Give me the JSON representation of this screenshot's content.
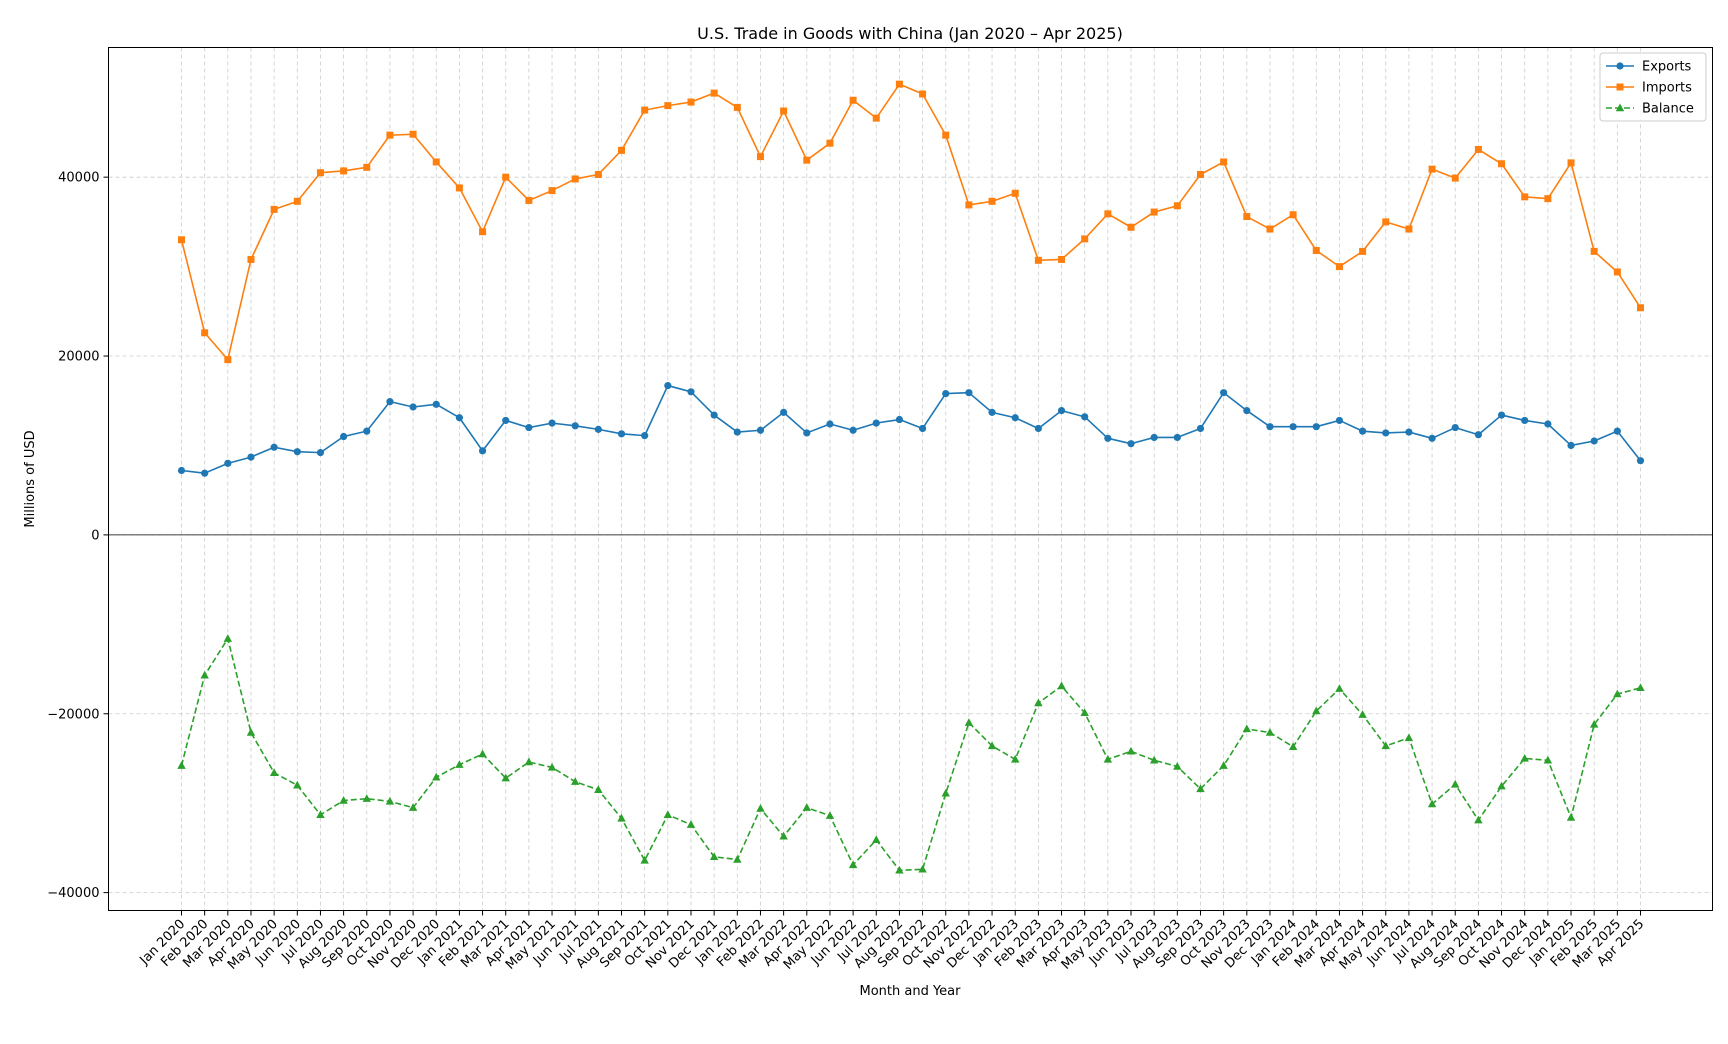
{
  "chart_data": {
    "type": "line",
    "title": "U.S. Trade in Goods with China (Jan 2020 – Apr 2025)",
    "xlabel": "Month and Year",
    "ylabel": "Millions of USD",
    "ylim": [
      -42000,
      54500
    ],
    "yticks": [
      -40000,
      -20000,
      0,
      20000,
      40000
    ],
    "ytick_labels": [
      "−40000",
      "−20000",
      "0",
      "20000",
      "40000"
    ],
    "grid": true,
    "zero_line": true,
    "legend_position": "top-right",
    "categories": [
      "Jan 2020",
      "Feb 2020",
      "Mar 2020",
      "Apr 2020",
      "May 2020",
      "Jun 2020",
      "Jul 2020",
      "Aug 2020",
      "Sep 2020",
      "Oct 2020",
      "Nov 2020",
      "Dec 2020",
      "Jan 2021",
      "Feb 2021",
      "Mar 2021",
      "Apr 2021",
      "May 2021",
      "Jun 2021",
      "Jul 2021",
      "Aug 2021",
      "Sep 2021",
      "Oct 2021",
      "Nov 2021",
      "Dec 2021",
      "Jan 2022",
      "Feb 2022",
      "Mar 2022",
      "Apr 2022",
      "May 2022",
      "Jun 2022",
      "Jul 2022",
      "Aug 2022",
      "Sep 2022",
      "Oct 2022",
      "Nov 2022",
      "Dec 2022",
      "Jan 2023",
      "Feb 2023",
      "Mar 2023",
      "Apr 2023",
      "May 2023",
      "Jun 2023",
      "Jul 2023",
      "Aug 2023",
      "Sep 2023",
      "Oct 2023",
      "Nov 2023",
      "Dec 2023",
      "Jan 2024",
      "Feb 2024",
      "Mar 2024",
      "Apr 2024",
      "May 2024",
      "Jun 2024",
      "Jul 2024",
      "Aug 2024",
      "Sep 2024",
      "Oct 2024",
      "Nov 2024",
      "Dec 2024",
      "Jan 2025",
      "Feb 2025",
      "Mar 2025",
      "Apr 2025"
    ],
    "series": [
      {
        "name": "Exports",
        "color": "#1f77b4",
        "marker": "circle",
        "dash": "solid",
        "values": [
          7200,
          6900,
          8000,
          8700,
          9800,
          9300,
          9200,
          11000,
          11600,
          14900,
          14300,
          14600,
          13100,
          9400,
          12800,
          12000,
          12500,
          12200,
          11800,
          11300,
          11100,
          16700,
          16000,
          13400,
          11500,
          11700,
          13700,
          11400,
          12400,
          11700,
          12500,
          12900,
          11900,
          15800,
          15900,
          13700,
          13100,
          11900,
          13900,
          13200,
          10800,
          10200,
          10900,
          10900,
          11900,
          15900,
          13900,
          12100,
          12100,
          12100,
          12800,
          11600,
          11400,
          11500,
          10800,
          12000,
          11200,
          13400,
          12800,
          12400,
          10000,
          10500,
          11600,
          8300
        ]
      },
      {
        "name": "Imports",
        "color": "#ff7f0e",
        "marker": "square",
        "dash": "solid",
        "values": [
          33000,
          22600,
          19600,
          30800,
          36400,
          37300,
          40500,
          40700,
          41100,
          44700,
          44800,
          41700,
          38800,
          33900,
          40000,
          37400,
          38500,
          39800,
          40300,
          43000,
          47500,
          48000,
          48400,
          49400,
          47800,
          42300,
          47400,
          41900,
          43800,
          48600,
          46600,
          50400,
          49300,
          44700,
          36900,
          37300,
          38200,
          30700,
          30800,
          33100,
          35900,
          34400,
          36100,
          36800,
          40300,
          41700,
          35600,
          34200,
          35800,
          31800,
          30000,
          31700,
          35000,
          34200,
          40900,
          39900,
          43100,
          41500,
          37800,
          37600,
          41600,
          31700,
          29400,
          25400
        ]
      },
      {
        "name": "Balance",
        "color": "#2ca02c",
        "marker": "triangle",
        "dash": "dashed",
        "values": [
          -25800,
          -15700,
          -11600,
          -22100,
          -26600,
          -28000,
          -31300,
          -29700,
          -29500,
          -29800,
          -30500,
          -27100,
          -25700,
          -24500,
          -27200,
          -25400,
          -26000,
          -27600,
          -28500,
          -31700,
          -36400,
          -31300,
          -32400,
          -36000,
          -36300,
          -30600,
          -33700,
          -30500,
          -31400,
          -36900,
          -34100,
          -37500,
          -37400,
          -28900,
          -21000,
          -23600,
          -25100,
          -18800,
          -16900,
          -19900,
          -25100,
          -24200,
          -25200,
          -25900,
          -28400,
          -25800,
          -21700,
          -22100,
          -23700,
          -19700,
          -17200,
          -20100,
          -23600,
          -22700,
          -30100,
          -27900,
          -31900,
          -28100,
          -25000,
          -25200,
          -31600,
          -21200,
          -17800,
          -17100
        ]
      }
    ]
  }
}
